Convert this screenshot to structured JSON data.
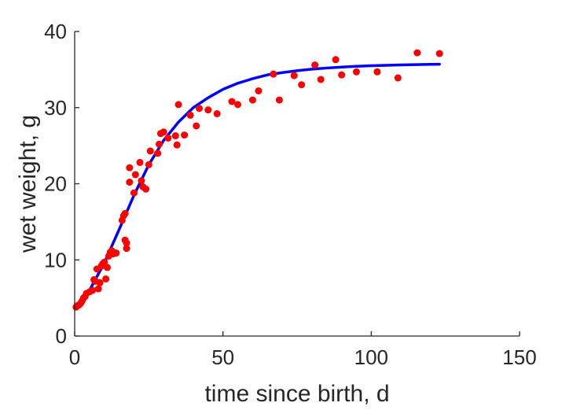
{
  "chart_data": {
    "type": "scatter",
    "title": "",
    "xlabel": "time since birth, d",
    "ylabel": "wet weight, g",
    "xlim": [
      0,
      150
    ],
    "ylim": [
      0,
      40
    ],
    "xticks": [
      0,
      50,
      100,
      150
    ],
    "yticks": [
      0,
      10,
      20,
      30,
      40
    ],
    "grid": false,
    "legend": "none",
    "colors": {
      "points": "#ff0000",
      "fit": "#0000ff",
      "axes": "#262626"
    },
    "series": [
      {
        "type": "scatter",
        "values": [
          [
            0.5,
            3.8
          ],
          [
            1,
            4.0
          ],
          [
            1.5,
            4.1
          ],
          [
            2,
            4.3
          ],
          [
            2.5,
            4.6
          ],
          [
            3,
            5.0
          ],
          [
            3.5,
            5.2
          ],
          [
            4,
            5.6
          ],
          [
            5,
            5.8
          ],
          [
            6,
            6.0
          ],
          [
            6.5,
            7.4
          ],
          [
            7,
            7.2
          ],
          [
            7.5,
            8.8
          ],
          [
            8,
            6.2
          ],
          [
            8.5,
            7.0
          ],
          [
            9,
            9.2
          ],
          [
            9.5,
            9.5
          ],
          [
            10,
            9.7
          ],
          [
            10.5,
            7.5
          ],
          [
            11,
            9.0
          ],
          [
            11.5,
            10.5
          ],
          [
            12,
            11.0
          ],
          [
            12.5,
            11.2
          ],
          [
            13,
            10.8
          ],
          [
            14,
            10.9
          ],
          [
            16,
            15.2
          ],
          [
            16.5,
            15.8
          ],
          [
            17,
            16.1
          ],
          [
            17,
            12.6
          ],
          [
            17.5,
            12.2
          ],
          [
            17.5,
            11.5
          ],
          [
            18.5,
            20.2
          ],
          [
            18.5,
            22.1
          ],
          [
            20,
            18.8
          ],
          [
            20.5,
            21.2
          ],
          [
            22,
            22.8
          ],
          [
            22.5,
            20.4
          ],
          [
            23,
            19.6
          ],
          [
            24,
            19.3
          ],
          [
            25,
            22.5
          ],
          [
            25.5,
            24.3
          ],
          [
            28,
            24.0
          ],
          [
            28.5,
            25.2
          ],
          [
            29,
            26.6
          ],
          [
            30,
            26.8
          ],
          [
            31.5,
            26.0
          ],
          [
            34,
            26.3
          ],
          [
            34.5,
            25.1
          ],
          [
            35,
            30.4
          ],
          [
            37,
            26.4
          ],
          [
            39,
            29.0
          ],
          [
            41,
            27.6
          ],
          [
            42,
            29.9
          ],
          [
            45,
            29.7
          ],
          [
            48,
            29.2
          ],
          [
            53,
            30.8
          ],
          [
            55,
            30.4
          ],
          [
            60,
            31.0
          ],
          [
            62,
            32.2
          ],
          [
            67,
            34.4
          ],
          [
            69,
            31.0
          ],
          [
            74,
            34.2
          ],
          [
            76.5,
            33.0
          ],
          [
            81,
            35.6
          ],
          [
            83,
            33.7
          ],
          [
            88,
            36.3
          ],
          [
            90,
            34.3
          ],
          [
            95,
            34.7
          ],
          [
            102,
            34.7
          ],
          [
            109,
            33.9
          ],
          [
            115.5,
            37.2
          ],
          [
            123,
            37.1
          ]
        ]
      },
      {
        "type": "line",
        "values": [
          [
            0,
            3.6
          ],
          [
            5,
            6.0
          ],
          [
            10,
            9.6
          ],
          [
            15,
            14.0
          ],
          [
            20,
            18.5
          ],
          [
            25,
            22.5
          ],
          [
            30,
            25.7
          ],
          [
            35,
            28.1
          ],
          [
            40,
            30.0
          ],
          [
            45,
            31.3
          ],
          [
            50,
            32.4
          ],
          [
            55,
            33.2
          ],
          [
            60,
            33.8
          ],
          [
            65,
            34.3
          ],
          [
            70,
            34.6
          ],
          [
            75,
            34.85
          ],
          [
            80,
            35.05
          ],
          [
            85,
            35.2
          ],
          [
            90,
            35.32
          ],
          [
            95,
            35.42
          ],
          [
            100,
            35.5
          ],
          [
            105,
            35.56
          ],
          [
            110,
            35.61
          ],
          [
            115,
            35.65
          ],
          [
            120,
            35.68
          ],
          [
            123,
            35.7
          ]
        ]
      }
    ]
  }
}
